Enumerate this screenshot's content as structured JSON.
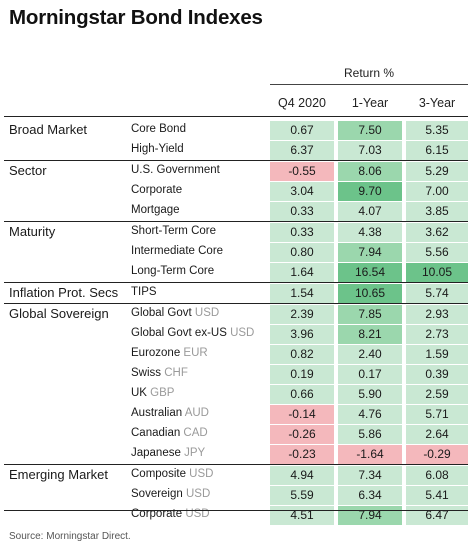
{
  "title": "Morningstar Bond Indexes",
  "return_header": "Return %",
  "columns": [
    "Q4 2020",
    "1-Year",
    "3-Year"
  ],
  "source": "Source: Morningstar Direct.",
  "colors": {
    "light_green": "#c9e8d3",
    "mid_green": "#9bd7ad",
    "dark_green": "#6cc38a",
    "light_pink": "#f4b8bc",
    "rule": "#222222",
    "currency_gray": "#9a9a9a"
  },
  "chart_data": {
    "type": "table",
    "title": "Morningstar Bond Indexes",
    "columns": [
      "Q4 2020",
      "1-Year",
      "3-Year"
    ],
    "groups": [
      {
        "name": "Broad Market",
        "rows": [
          {
            "label": "Core Bond",
            "currency": "",
            "values": [
              0.67,
              7.5,
              5.35
            ]
          },
          {
            "label": "High-Yield",
            "currency": "",
            "values": [
              6.37,
              7.03,
              6.15
            ]
          }
        ]
      },
      {
        "name": "Sector",
        "rows": [
          {
            "label": "U.S. Government",
            "currency": "",
            "values": [
              -0.55,
              8.06,
              5.29
            ]
          },
          {
            "label": "Corporate",
            "currency": "",
            "values": [
              3.04,
              9.7,
              7.0
            ]
          },
          {
            "label": "Mortgage",
            "currency": "",
            "values": [
              0.33,
              4.07,
              3.85
            ]
          }
        ]
      },
      {
        "name": "Maturity",
        "rows": [
          {
            "label": "Short-Term Core",
            "currency": "",
            "values": [
              0.33,
              4.38,
              3.62
            ]
          },
          {
            "label": "Intermediate Core",
            "currency": "",
            "values": [
              0.8,
              7.94,
              5.56
            ]
          },
          {
            "label": "Long-Term Core",
            "currency": "",
            "values": [
              1.64,
              16.54,
              10.05
            ]
          }
        ]
      },
      {
        "name": "Inflation Prot. Secs",
        "rows": [
          {
            "label": "TIPS",
            "currency": "",
            "values": [
              1.54,
              10.65,
              5.74
            ]
          }
        ]
      },
      {
        "name": "Global Sovereign",
        "rows": [
          {
            "label": "Global Govt",
            "currency": "USD",
            "values": [
              2.39,
              7.85,
              2.93
            ]
          },
          {
            "label": "Global Govt ex-US",
            "currency": "USD",
            "values": [
              3.96,
              8.21,
              2.73
            ]
          },
          {
            "label": "Eurozone",
            "currency": "EUR",
            "values": [
              0.82,
              2.4,
              1.59
            ]
          },
          {
            "label": "Swiss",
            "currency": "CHF",
            "values": [
              0.19,
              0.17,
              0.39
            ]
          },
          {
            "label": "UK",
            "currency": "GBP",
            "values": [
              0.66,
              5.9,
              2.59
            ]
          },
          {
            "label": "Australian",
            "currency": "AUD",
            "values": [
              -0.14,
              4.76,
              5.71
            ]
          },
          {
            "label": "Canadian",
            "currency": "CAD",
            "values": [
              -0.26,
              5.86,
              2.64
            ]
          },
          {
            "label": "Japanese",
            "currency": "JPY",
            "values": [
              -0.23,
              -1.64,
              -0.29
            ]
          }
        ]
      },
      {
        "name": "Emerging Market",
        "rows": [
          {
            "label": "Composite",
            "currency": "USD",
            "values": [
              4.94,
              7.34,
              6.08
            ]
          },
          {
            "label": "Sovereign",
            "currency": "USD",
            "values": [
              5.59,
              6.34,
              5.41
            ]
          },
          {
            "label": "Corporate",
            "currency": "USD",
            "values": [
              4.51,
              7.94,
              6.47
            ]
          }
        ]
      }
    ]
  }
}
